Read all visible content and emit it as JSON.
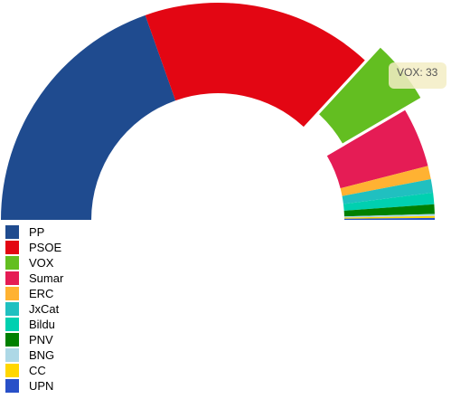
{
  "chart_data": {
    "type": "pie",
    "subtype": "parliament-semicircle",
    "highlighted": "VOX",
    "series": [
      {
        "name": "PP",
        "value": 137,
        "color": "#1f4b8f"
      },
      {
        "name": "PSOE",
        "value": 121,
        "color": "#e30613"
      },
      {
        "name": "VOX",
        "value": 33,
        "color": "#63be21"
      },
      {
        "name": "Sumar",
        "value": 31,
        "color": "#e51c55"
      },
      {
        "name": "ERC",
        "value": 7,
        "color": "#ffb232"
      },
      {
        "name": "JxCat",
        "value": 7,
        "color": "#20c0c0"
      },
      {
        "name": "Bildu",
        "value": 6,
        "color": "#00d0b0"
      },
      {
        "name": "PNV",
        "value": 5,
        "color": "#008000"
      },
      {
        "name": "BNG",
        "value": 1,
        "color": "#add8e6"
      },
      {
        "name": "CC",
        "value": 1,
        "color": "#ffd700"
      },
      {
        "name": "UPN",
        "value": 1,
        "color": "#2850c8"
      }
    ],
    "legend_position": "bottom-left",
    "tooltip": {
      "label": "VOX",
      "value": "33",
      "text": "VOX: 33"
    }
  }
}
